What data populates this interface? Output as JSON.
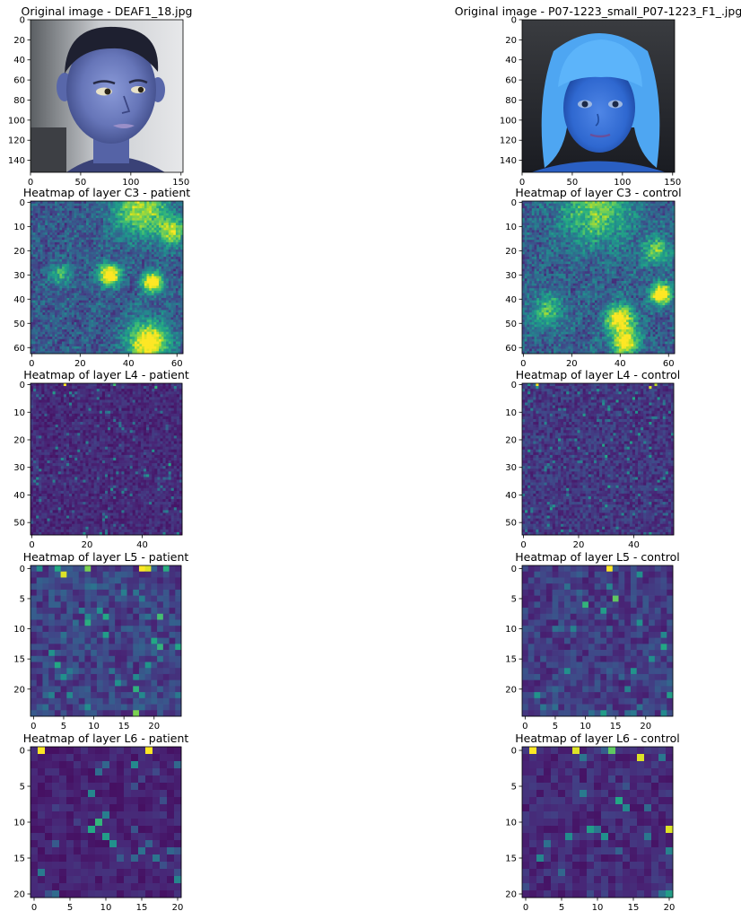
{
  "figure": {
    "colormap": "viridis",
    "colormap_stops": [
      "#440154",
      "#482475",
      "#414487",
      "#355f8d",
      "#2a788e",
      "#21918c",
      "#22a884",
      "#44bf70",
      "#7ad151",
      "#bddf26",
      "#fde725"
    ]
  },
  "chart_data": [
    {
      "type": "image",
      "title": "Original image - DEAF1_18.jpg",
      "grid": false,
      "extent": [
        0,
        152,
        152,
        0
      ],
      "xticks": [
        "0",
        "50",
        "100",
        "150"
      ],
      "yticks": [
        "0",
        "20",
        "40",
        "60",
        "80",
        "100",
        "120",
        "140"
      ],
      "tint": "blue",
      "subject": "patient"
    },
    {
      "type": "image",
      "title": "Original image - P07-1223_small_P07-1223_F1_.jpg",
      "grid": false,
      "extent": [
        0,
        152,
        152,
        0
      ],
      "xticks": [
        "0",
        "50",
        "100",
        "150"
      ],
      "yticks": [
        "0",
        "20",
        "40",
        "60",
        "80",
        "100",
        "120",
        "140"
      ],
      "tint": "blue",
      "subject": "control"
    },
    {
      "type": "heatmap",
      "title": "Heatmap of layer C3 - patient",
      "size": 63,
      "grid": false,
      "xticks": [
        "0",
        "20",
        "40",
        "60"
      ],
      "yticks": [
        "0",
        "10",
        "20",
        "30",
        "40",
        "50",
        "60"
      ],
      "hotspots": [
        [
          32,
          30,
          3,
          1.0
        ],
        [
          50,
          33,
          3,
          0.9
        ],
        [
          48,
          58,
          6,
          0.85
        ],
        [
          45,
          3,
          8,
          0.6
        ],
        [
          58,
          12,
          4,
          0.55
        ],
        [
          12,
          30,
          3,
          0.4
        ]
      ],
      "base_level": 0.3
    },
    {
      "type": "heatmap",
      "title": "Heatmap of layer C3 - control",
      "size": 63,
      "grid": false,
      "xticks": [
        "0",
        "20",
        "40",
        "60"
      ],
      "yticks": [
        "0",
        "10",
        "20",
        "30",
        "40",
        "50",
        "60"
      ],
      "hotspots": [
        [
          57,
          38,
          3,
          0.95
        ],
        [
          40,
          48,
          4,
          0.8
        ],
        [
          42,
          58,
          4,
          0.75
        ],
        [
          30,
          3,
          10,
          0.5
        ],
        [
          55,
          20,
          4,
          0.5
        ],
        [
          10,
          45,
          5,
          0.4
        ]
      ],
      "base_level": 0.32
    },
    {
      "type": "heatmap",
      "title": "Heatmap of layer L4 - patient",
      "size": 55,
      "grid": false,
      "xticks": [
        "0",
        "20",
        "40"
      ],
      "yticks": [
        "0",
        "10",
        "20",
        "30",
        "40",
        "50"
      ],
      "bright_cells": [
        [
          12,
          0,
          1.0
        ],
        [
          30,
          0,
          0.7
        ],
        [
          45,
          1,
          0.65
        ],
        [
          50,
          29,
          0.6
        ],
        [
          8,
          3,
          0.55
        ]
      ],
      "base_level": 0.15
    },
    {
      "type": "heatmap",
      "title": "Heatmap of layer L4 - control",
      "size": 55,
      "grid": false,
      "xticks": [
        "0",
        "20",
        "40"
      ],
      "yticks": [
        "0",
        "10",
        "20",
        "30",
        "40",
        "50"
      ],
      "bright_cells": [
        [
          5,
          0,
          1.0
        ],
        [
          46,
          1,
          0.95
        ],
        [
          48,
          0,
          0.9
        ],
        [
          30,
          26,
          0.6
        ],
        [
          10,
          45,
          0.55
        ],
        [
          40,
          5,
          0.6
        ]
      ],
      "base_level": 0.2
    },
    {
      "type": "heatmap",
      "title": "Heatmap of layer L5 - patient",
      "size": 25,
      "grid": false,
      "xticks": [
        "0",
        "5",
        "10",
        "15",
        "20"
      ],
      "yticks": [
        "0",
        "5",
        "10",
        "15",
        "20"
      ],
      "bright_cells": [
        [
          18,
          0,
          1.0
        ],
        [
          19,
          0,
          0.95
        ],
        [
          5,
          1,
          0.95
        ],
        [
          9,
          0,
          0.8
        ],
        [
          4,
          0,
          0.6
        ],
        [
          21,
          8,
          0.7
        ],
        [
          21,
          13,
          0.65
        ],
        [
          17,
          24,
          0.8
        ],
        [
          4,
          16,
          0.6
        ],
        [
          20,
          12,
          0.6
        ],
        [
          12,
          11,
          0.55
        ]
      ],
      "base_level": 0.25
    },
    {
      "type": "heatmap",
      "title": "Heatmap of layer L5 - control",
      "size": 25,
      "grid": false,
      "xticks": [
        "0",
        "5",
        "10",
        "15",
        "20"
      ],
      "yticks": [
        "0",
        "5",
        "10",
        "15",
        "20"
      ],
      "bright_cells": [
        [
          14,
          0,
          1.0
        ],
        [
          15,
          5,
          0.75
        ],
        [
          10,
          6,
          0.65
        ],
        [
          23,
          13,
          0.6
        ],
        [
          24,
          21,
          0.55
        ],
        [
          13,
          7,
          0.55
        ],
        [
          19,
          9,
          0.5
        ]
      ],
      "base_level": 0.22
    },
    {
      "type": "heatmap",
      "title": "Heatmap of layer L6 - patient",
      "size": 21,
      "grid": false,
      "xticks": [
        "0",
        "5",
        "10",
        "15",
        "20"
      ],
      "yticks": [
        "0",
        "5",
        "10",
        "15",
        "20"
      ],
      "bright_cells": [
        [
          1,
          0,
          1.0
        ],
        [
          16,
          0,
          1.0
        ],
        [
          9,
          10,
          0.65
        ],
        [
          8,
          11,
          0.6
        ],
        [
          10,
          12,
          0.55
        ],
        [
          11,
          13,
          0.5
        ],
        [
          20,
          18,
          0.45
        ]
      ],
      "base_level": 0.12
    },
    {
      "type": "heatmap",
      "title": "Heatmap of layer L6 - control",
      "size": 21,
      "grid": false,
      "xticks": [
        "0",
        "5",
        "10",
        "15",
        "20"
      ],
      "yticks": [
        "0",
        "5",
        "10",
        "15",
        "20"
      ],
      "bright_cells": [
        [
          1,
          0,
          1.0
        ],
        [
          7,
          0,
          0.95
        ],
        [
          16,
          1,
          0.95
        ],
        [
          20,
          11,
          0.95
        ],
        [
          12,
          0,
          0.75
        ],
        [
          13,
          7,
          0.6
        ],
        [
          9,
          11,
          0.55
        ],
        [
          11,
          12,
          0.5
        ],
        [
          20,
          20,
          0.55
        ]
      ],
      "base_level": 0.15
    }
  ]
}
